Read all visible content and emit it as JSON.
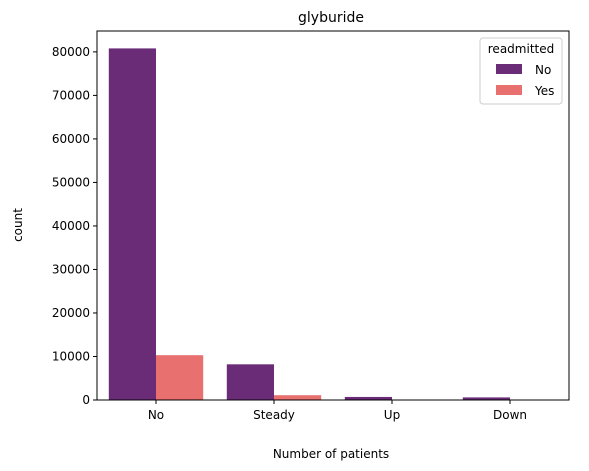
{
  "chart_data": {
    "type": "bar",
    "title": "glyburide",
    "xlabel": "Number of patients",
    "ylabel": "count",
    "categories": [
      "No",
      "Steady",
      "Up",
      "Down"
    ],
    "series": [
      {
        "name": "No",
        "values": [
          80800,
          8200,
          700,
          600
        ]
      },
      {
        "name": "Yes",
        "values": [
          10300,
          1100,
          110,
          90
        ]
      }
    ],
    "ylim": [
      0,
      84800
    ],
    "yticks": [
      0,
      10000,
      20000,
      30000,
      40000,
      50000,
      60000,
      70000,
      80000
    ],
    "legend": {
      "title": "readmitted",
      "placement": "top-right"
    },
    "colors": {
      "No": "#6a2c77",
      "Yes": "#e8706f"
    },
    "grid": false
  }
}
